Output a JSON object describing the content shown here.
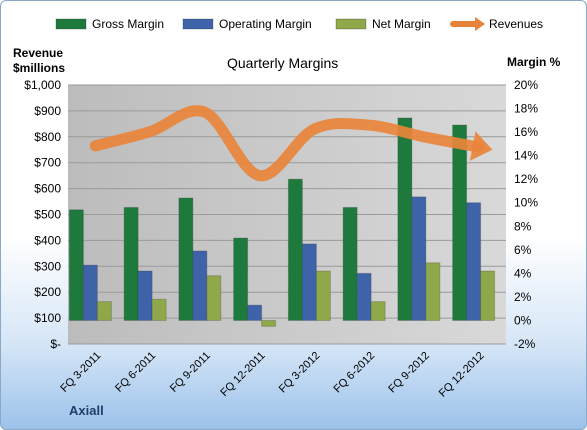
{
  "chart_data": {
    "type": "bar",
    "title": "Quarterly Margins",
    "company": "Axiall",
    "ylabel_left": "Revenue $millions",
    "ylabel_right": "Margin %",
    "categories": [
      "FQ 3-2011",
      "FQ 6-2011",
      "FQ 9-2011",
      "FQ 12-2011",
      "FQ 3-2012",
      "FQ 6-2012",
      "FQ 9-2012",
      "FQ 12-2012"
    ],
    "left_axis": {
      "min": 0,
      "max": 1000,
      "step": 100,
      "tick_labels": [
        "$-",
        "$100",
        "$200",
        "$300",
        "$400",
        "$500",
        "$600",
        "$700",
        "$800",
        "$900",
        "$1,000"
      ]
    },
    "right_axis": {
      "min": -2,
      "max": 20,
      "step": 2,
      "tick_labels": [
        "-2%",
        "0%",
        "2%",
        "4%",
        "6%",
        "8%",
        "10%",
        "12%",
        "14%",
        "16%",
        "18%",
        "20%"
      ]
    },
    "series": [
      {
        "name": "Gross Margin",
        "type": "bar",
        "axis": "right",
        "color": "#1e7a3c",
        "values": [
          9.4,
          9.6,
          10.4,
          7.0,
          12.0,
          9.6,
          17.2,
          16.6
        ]
      },
      {
        "name": "Operating Margin",
        "type": "bar",
        "axis": "right",
        "color": "#3f63a8",
        "values": [
          4.7,
          4.2,
          5.9,
          1.3,
          6.5,
          4.0,
          10.5,
          10.0
        ]
      },
      {
        "name": "Net Margin",
        "type": "bar",
        "axis": "right",
        "color": "#8fa84a",
        "values": [
          1.6,
          1.8,
          3.8,
          -0.5,
          4.2,
          1.6,
          4.9,
          4.2
        ]
      },
      {
        "name": "Revenues",
        "type": "line",
        "axis": "left",
        "color": "#e8843a",
        "values": [
          765,
          820,
          895,
          650,
          830,
          845,
          800,
          760
        ]
      }
    ],
    "legend_position": "top",
    "grid": true
  }
}
